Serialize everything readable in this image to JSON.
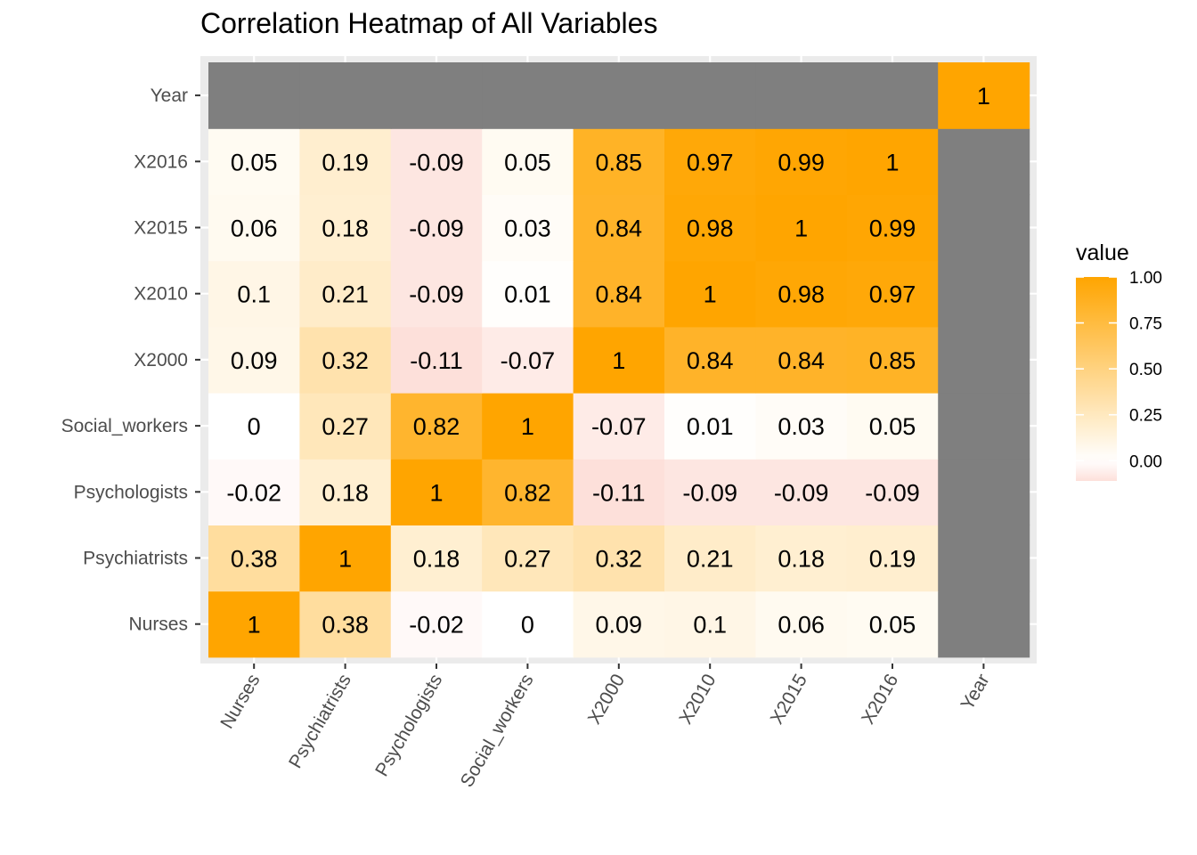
{
  "chart_data": {
    "type": "heatmap",
    "title": "Correlation Heatmap of All Variables",
    "x_categories": [
      "Nurses",
      "Psychiatrists",
      "Psychologists",
      "Social_workers",
      "X2000",
      "X2010",
      "X2015",
      "X2016",
      "Year"
    ],
    "y_categories": [
      "Nurses",
      "Psychiatrists",
      "Psychologists",
      "Social_workers",
      "X2000",
      "X2010",
      "X2015",
      "X2016",
      "Year"
    ],
    "values": [
      [
        1,
        0.38,
        -0.02,
        0,
        0.09,
        0.1,
        0.06,
        0.05,
        null
      ],
      [
        0.38,
        1,
        0.18,
        0.27,
        0.32,
        0.21,
        0.18,
        0.19,
        null
      ],
      [
        -0.02,
        0.18,
        1,
        0.82,
        -0.11,
        -0.09,
        -0.09,
        -0.09,
        null
      ],
      [
        0,
        0.27,
        0.82,
        1,
        -0.07,
        0.01,
        0.03,
        0.05,
        null
      ],
      [
        0.09,
        0.32,
        -0.11,
        -0.07,
        1,
        0.84,
        0.84,
        0.85,
        null
      ],
      [
        0.1,
        0.21,
        -0.09,
        0.01,
        0.84,
        1,
        0.98,
        0.97,
        null
      ],
      [
        0.06,
        0.18,
        -0.09,
        0.03,
        0.84,
        0.98,
        1,
        0.99,
        null
      ],
      [
        0.05,
        0.19,
        -0.09,
        0.05,
        0.85,
        0.97,
        0.99,
        1,
        null
      ],
      [
        null,
        null,
        null,
        null,
        null,
        null,
        null,
        null,
        1
      ]
    ],
    "legend": {
      "title": "value",
      "ticks": [
        "1.00",
        "0.75",
        "0.50",
        "0.25",
        "0.00"
      ],
      "tick_values": [
        1,
        0.75,
        0.5,
        0.25,
        0
      ],
      "range": [
        -0.11,
        1
      ],
      "placement": "right"
    },
    "colors": {
      "high": "#FFA500",
      "mid": "#FFFFFF",
      "low": "#FDE0DA",
      "na": "#7F7F7F",
      "panel": "#EBEBEB",
      "grid": "#FFFFFF"
    },
    "grid": true
  }
}
